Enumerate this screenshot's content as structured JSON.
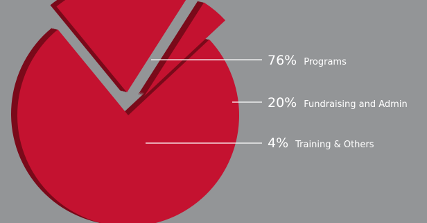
{
  "chart_data": {
    "type": "pie",
    "title": "",
    "slices": [
      {
        "label": "Programs",
        "value": 76,
        "value_label": "76%"
      },
      {
        "label": "Fundraising and Admin",
        "value": 20,
        "value_label": "20%"
      },
      {
        "label": "Training & Others",
        "value": 4,
        "value_label": "4%"
      }
    ],
    "colors": {
      "background": "#939597",
      "slice_top": "#c41230",
      "slice_side": "#7a0a1a",
      "leader_line": "#ffffff",
      "text": "#ffffff"
    },
    "exploded": true,
    "style": "3d"
  }
}
